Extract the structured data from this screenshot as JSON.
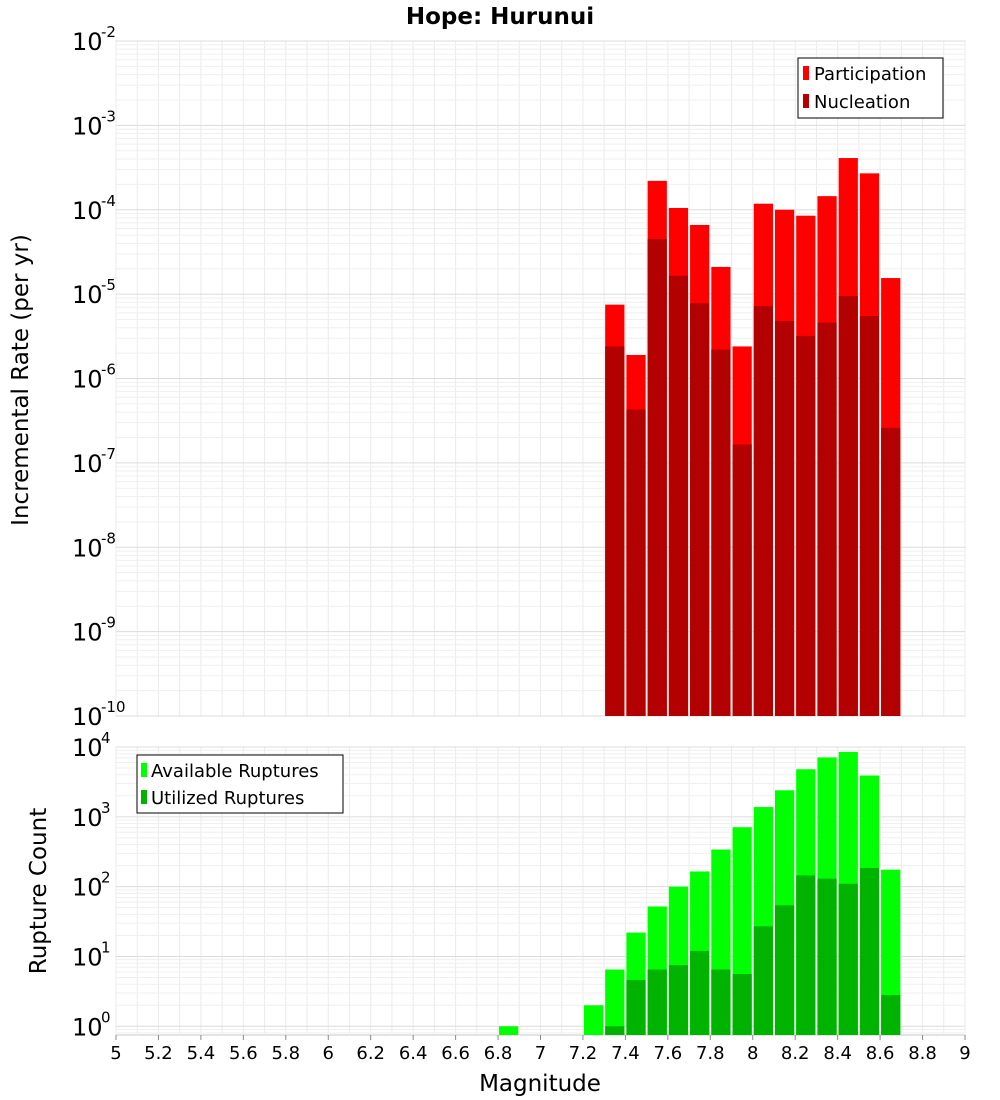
{
  "chart_data": [
    {
      "type": "bar",
      "title": "Hope: Hurunui",
      "ylabel": "Incremental Rate (per yr)",
      "xlabel": "",
      "yscale": "log",
      "ylim": [
        1e-10,
        0.01
      ],
      "ytick_bases": [
        "10",
        "10",
        "10",
        "10",
        "10",
        "10",
        "10",
        "10",
        "10"
      ],
      "ytick_exponents": [
        "-10",
        "-9",
        "-8",
        "-7",
        "-6",
        "-5",
        "-4",
        "-3",
        "-2"
      ],
      "grid": true,
      "legend_position": "top-right",
      "categories": [
        7.35,
        7.45,
        7.55,
        7.65,
        7.75,
        7.85,
        7.95,
        8.05,
        8.15,
        8.25,
        8.35,
        8.45,
        8.55,
        8.65
      ],
      "series": [
        {
          "name": "Participation",
          "color": "#ff0000",
          "values": [
            7.5e-06,
            1.9e-06,
            0.00022,
            0.000105,
            6.6e-05,
            2.1e-05,
            2.4e-06,
            0.000118,
            0.0001,
            8.5e-05,
            0.000145,
            0.00041,
            0.00027,
            1.55e-05
          ]
        },
        {
          "name": "Nucleation",
          "color": "#b30000",
          "values": [
            2.4e-06,
            4.3e-07,
            4.5e-05,
            1.65e-05,
            7.8e-06,
            2.2e-06,
            1.65e-07,
            7.2e-06,
            4.8e-06,
            3.2e-06,
            4.6e-06,
            9.5e-06,
            5.5e-06,
            2.6e-07
          ]
        }
      ]
    },
    {
      "type": "bar",
      "ylabel": "Rupture Count",
      "xlabel": "Magnitude",
      "yscale": "log",
      "ylim": [
        0.75,
        10000
      ],
      "ytick_bases": [
        "10",
        "10",
        "10",
        "10",
        "10"
      ],
      "ytick_exponents": [
        "0",
        "1",
        "2",
        "3",
        "4"
      ],
      "xlim": [
        5,
        9
      ],
      "xticks": [
        "5",
        "5.2",
        "5.4",
        "5.6",
        "5.8",
        "6",
        "6.2",
        "6.4",
        "6.6",
        "6.8",
        "7",
        "7.2",
        "7.4",
        "7.6",
        "7.8",
        "8",
        "8.2",
        "8.4",
        "8.6",
        "8.8",
        "9"
      ],
      "grid": true,
      "legend_position": "top-left",
      "categories": [
        6.85,
        7.25,
        7.35,
        7.45,
        7.55,
        7.65,
        7.75,
        7.85,
        7.95,
        8.05,
        8.15,
        8.25,
        8.35,
        8.45,
        8.55,
        8.65
      ],
      "series": [
        {
          "name": "Available Ruptures",
          "color": "#00ff00",
          "values": [
            1,
            2,
            6.5,
            22,
            52,
            100,
            165,
            340,
            710,
            1380,
            2400,
            4800,
            7100,
            8500,
            3900,
            175
          ]
        },
        {
          "name": "Utilized Ruptures",
          "color": "#00b300",
          "values": [
            0,
            0,
            1,
            4.6,
            6.5,
            7.5,
            12,
            6.5,
            5.6,
            27,
            54,
            145,
            130,
            110,
            185,
            2.8
          ]
        }
      ]
    }
  ]
}
